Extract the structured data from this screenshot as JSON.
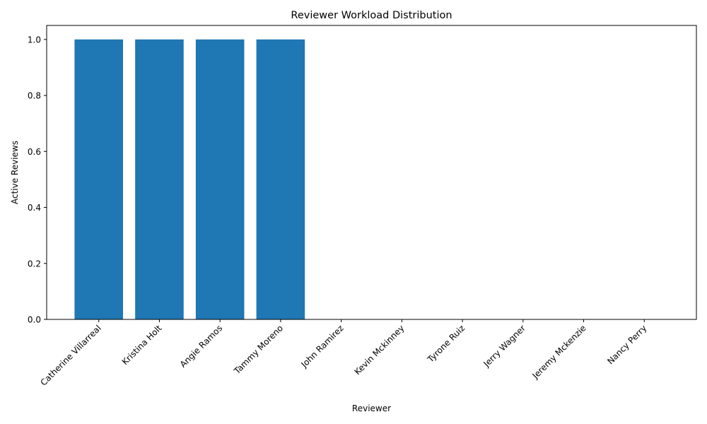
{
  "chart_data": {
    "type": "bar",
    "title": "Reviewer Workload Distribution",
    "xlabel": "Reviewer",
    "ylabel": "Active Reviews",
    "categories": [
      "Catherine Villarreal",
      "Kristina Holt",
      "Angie Ramos",
      "Tammy Moreno",
      "John Ramirez",
      "Kevin Mckinney",
      "Tyrone Ruiz",
      "Jerry Wagner",
      "Jeremy Mckenzie",
      "Nancy Perry"
    ],
    "values": [
      1,
      1,
      1,
      1,
      0,
      0,
      0,
      0,
      0,
      0
    ],
    "ylim": [
      0,
      1.05
    ],
    "yticks": [
      "0.0",
      "0.2",
      "0.4",
      "0.6",
      "0.8",
      "1.0"
    ],
    "bar_color": "#1f77b4",
    "grid": false,
    "legend": "none"
  }
}
